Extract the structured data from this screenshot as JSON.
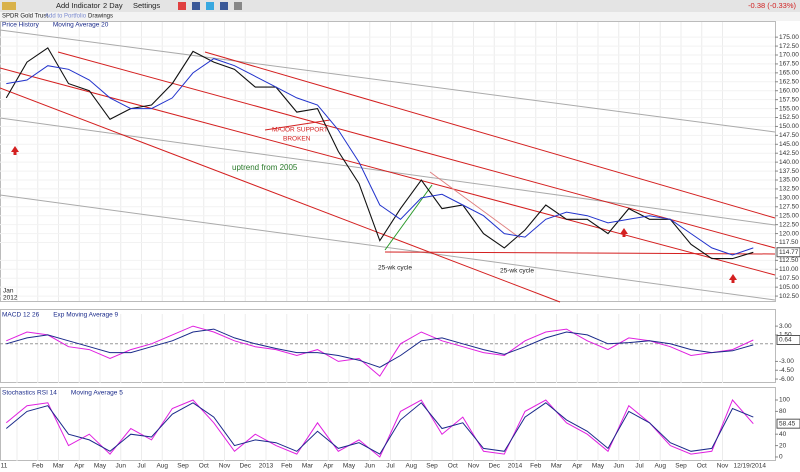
{
  "toolbar": {
    "add_indicator": "Add Indicator",
    "period": "2 Day",
    "settings": "Settings",
    "change": "-0.38 (-0.33%)",
    "symbol_name": "SPDR Gold Trust",
    "add_to_portfolio": "Add to Portfolio",
    "drawings": "Drawings"
  },
  "annotations": {
    "support": [
      "MAJOR SUPPORT",
      "BROKEN"
    ],
    "uptrend": "uptrend from 2005",
    "cycle_1": "25-wk cycle",
    "cycle_2": "25-wk cycle"
  },
  "period_label": [
    "Jan",
    "2012"
  ],
  "end_date": "12/19/2014",
  "xtick_labels": [
    "11",
    "Feb",
    "Mar",
    "Apr",
    "May",
    "Jun",
    "Jul",
    "Aug",
    "Sep",
    "Oct",
    "Nov",
    "Dec",
    "2013",
    "Feb",
    "Mar",
    "Apr",
    "May",
    "Jun",
    "Jul",
    "Aug",
    "Sep",
    "Oct",
    "Nov",
    "Dec",
    "2014",
    "Feb",
    "Mar",
    "Apr",
    "May",
    "Jun",
    "Jul",
    "Aug",
    "Sep",
    "Oct",
    "Nov"
  ],
  "chart_data": [
    {
      "type": "line",
      "x": [
        "2011-12",
        "2012-01",
        "2012-02",
        "2012-03",
        "2012-04",
        "2012-05",
        "2012-06",
        "2012-07",
        "2012-08",
        "2012-09",
        "2012-10",
        "2012-11",
        "2012-12",
        "2013-01",
        "2013-02",
        "2013-03",
        "2013-04",
        "2013-05",
        "2013-06",
        "2013-07",
        "2013-08",
        "2013-09",
        "2013-10",
        "2013-11",
        "2013-12",
        "2014-01",
        "2014-02",
        "2014-03",
        "2014-04",
        "2014-05",
        "2014-06",
        "2014-07",
        "2014-08",
        "2014-09",
        "2014-10",
        "2014-11",
        "2014-12"
      ],
      "series": [
        {
          "name": "Price History",
          "color": "#111111",
          "values": [
            158,
            168,
            172,
            162,
            160,
            152,
            155,
            156,
            162,
            171,
            168,
            166,
            161,
            161,
            154,
            155,
            143,
            134,
            118,
            127,
            135,
            127,
            128,
            120,
            116,
            121,
            128,
            124,
            124,
            120,
            127,
            124,
            124,
            117,
            113,
            113,
            114.77
          ]
        },
        {
          "name": "Moving Average 20",
          "color": "#2233cc",
          "values": [
            162,
            163,
            167,
            166,
            163,
            158,
            155,
            155,
            158,
            165,
            169,
            167,
            164,
            161,
            158,
            156,
            149,
            140,
            128,
            124,
            130,
            131,
            128,
            125,
            120,
            119,
            124,
            126,
            125,
            123,
            124,
            125,
            124,
            120,
            116,
            114,
            116
          ]
        }
      ],
      "ylim": [
        101.4,
        177
      ],
      "yticks": [
        {
          "value": 102.5,
          "label": "102.50"
        },
        {
          "value": 105,
          "label": "105.00"
        },
        {
          "value": 107.5,
          "label": "107.50"
        },
        {
          "value": 110,
          "label": "110.00"
        },
        {
          "value": 112.5,
          "label": "112.50"
        },
        {
          "value": 117.5,
          "label": "117.50"
        },
        {
          "value": 120,
          "label": "120.00"
        },
        {
          "value": 122.5,
          "label": "122.50"
        },
        {
          "value": 125,
          "label": "125.00"
        },
        {
          "value": 127.5,
          "label": "127.50"
        },
        {
          "value": 130,
          "label": "130.00"
        },
        {
          "value": 132.5,
          "label": "132.50"
        },
        {
          "value": 135,
          "label": "135.00"
        },
        {
          "value": 137.5,
          "label": "137.50"
        },
        {
          "value": 140,
          "label": "140.00"
        },
        {
          "value": 142.5,
          "label": "142.50"
        },
        {
          "value": 145,
          "label": "145.00"
        },
        {
          "value": 147.5,
          "label": "147.50"
        },
        {
          "value": 150,
          "label": "150.00"
        },
        {
          "value": 152.5,
          "label": "152.50"
        },
        {
          "value": 155,
          "label": "155.00"
        },
        {
          "value": 157.5,
          "label": "157.50"
        },
        {
          "value": 160,
          "label": "160.00"
        },
        {
          "value": 162.5,
          "label": "162.50"
        },
        {
          "value": 165,
          "label": "165.00"
        },
        {
          "value": 167.5,
          "label": "167.50"
        },
        {
          "value": 170,
          "label": "170.00"
        },
        {
          "value": 172.5,
          "label": "172.50"
        },
        {
          "value": 175,
          "label": "175.00"
        }
      ],
      "grid": true
    },
    {
      "type": "line",
      "x": [
        "2011-12",
        "2012-01",
        "2012-02",
        "2012-03",
        "2012-04",
        "2012-05",
        "2012-06",
        "2012-07",
        "2012-08",
        "2012-09",
        "2012-10",
        "2012-11",
        "2012-12",
        "2013-01",
        "2013-02",
        "2013-03",
        "2013-04",
        "2013-05",
        "2013-06",
        "2013-07",
        "2013-08",
        "2013-09",
        "2013-10",
        "2013-11",
        "2013-12",
        "2014-01",
        "2014-02",
        "2014-03",
        "2014-04",
        "2014-05",
        "2014-06",
        "2014-07",
        "2014-08",
        "2014-09",
        "2014-10",
        "2014-11",
        "2014-12"
      ],
      "series": [
        {
          "name": "MACD 12 26",
          "color": "#e020e0",
          "values": [
            0.5,
            2.0,
            1.5,
            -0.5,
            -1.0,
            -2.5,
            -1.0,
            0.0,
            1.5,
            3.0,
            2.0,
            0.5,
            -0.5,
            -1.0,
            -2.0,
            -1.0,
            -3.0,
            -2.5,
            -5.5,
            0.0,
            2.0,
            0.5,
            -0.5,
            -1.5,
            -2.0,
            0.5,
            2.0,
            2.5,
            0.5,
            -1.0,
            1.0,
            0.5,
            -0.5,
            -2.0,
            -1.5,
            -1.0,
            0.64
          ]
        },
        {
          "name": "Exp Moving Average 9",
          "color": "#1a2a8a",
          "values": [
            0.0,
            1.0,
            1.5,
            0.5,
            -0.5,
            -1.5,
            -1.5,
            -0.5,
            0.5,
            2.0,
            2.5,
            1.0,
            0.0,
            -0.8,
            -1.5,
            -1.5,
            -2.0,
            -2.8,
            -4.0,
            -2.0,
            0.5,
            1.0,
            0.0,
            -1.0,
            -1.8,
            -0.5,
            1.0,
            2.0,
            1.5,
            0.0,
            0.2,
            0.5,
            0.0,
            -1.0,
            -1.5,
            -1.2,
            -0.2
          ]
        }
      ],
      "ylim": [
        -6.5,
        3.7
      ],
      "yticks": [
        {
          "value": 3,
          "label": "3.00"
        },
        {
          "value": 1.5,
          "label": "1.50"
        },
        {
          "value": -3,
          "label": "-3.00"
        },
        {
          "value": -4.5,
          "label": "-4.50"
        },
        {
          "value": -6,
          "label": "-6.00"
        }
      ],
      "reference_line": 0
    },
    {
      "type": "line",
      "x": [
        "2011-12",
        "2012-01",
        "2012-02",
        "2012-03",
        "2012-04",
        "2012-05",
        "2012-06",
        "2012-07",
        "2012-08",
        "2012-09",
        "2012-10",
        "2012-11",
        "2012-12",
        "2013-01",
        "2013-02",
        "2013-03",
        "2013-04",
        "2013-05",
        "2013-06",
        "2013-07",
        "2013-08",
        "2013-09",
        "2013-10",
        "2013-11",
        "2013-12",
        "2014-01",
        "2014-02",
        "2014-03",
        "2014-04",
        "2014-05",
        "2014-06",
        "2014-07",
        "2014-08",
        "2014-09",
        "2014-10",
        "2014-11",
        "2014-12"
      ],
      "series": [
        {
          "name": "Stochastics RSI 14",
          "color": "#e020e0",
          "values": [
            60,
            90,
            95,
            20,
            40,
            5,
            50,
            30,
            85,
            100,
            60,
            10,
            40,
            20,
            5,
            60,
            10,
            30,
            0,
            80,
            100,
            40,
            70,
            10,
            5,
            80,
            100,
            60,
            40,
            10,
            90,
            60,
            20,
            5,
            10,
            100,
            58.45
          ]
        },
        {
          "name": "Moving Average 5",
          "color": "#1a2a8a",
          "values": [
            50,
            80,
            90,
            40,
            30,
            10,
            40,
            35,
            75,
            95,
            70,
            20,
            30,
            25,
            10,
            45,
            15,
            25,
            5,
            65,
            95,
            50,
            60,
            15,
            10,
            70,
            95,
            65,
            45,
            15,
            80,
            60,
            25,
            10,
            15,
            85,
            70
          ]
        }
      ],
      "ylim": [
        -5.3,
        103.5
      ],
      "yticks": [
        0,
        20,
        40,
        80,
        100
      ]
    }
  ]
}
